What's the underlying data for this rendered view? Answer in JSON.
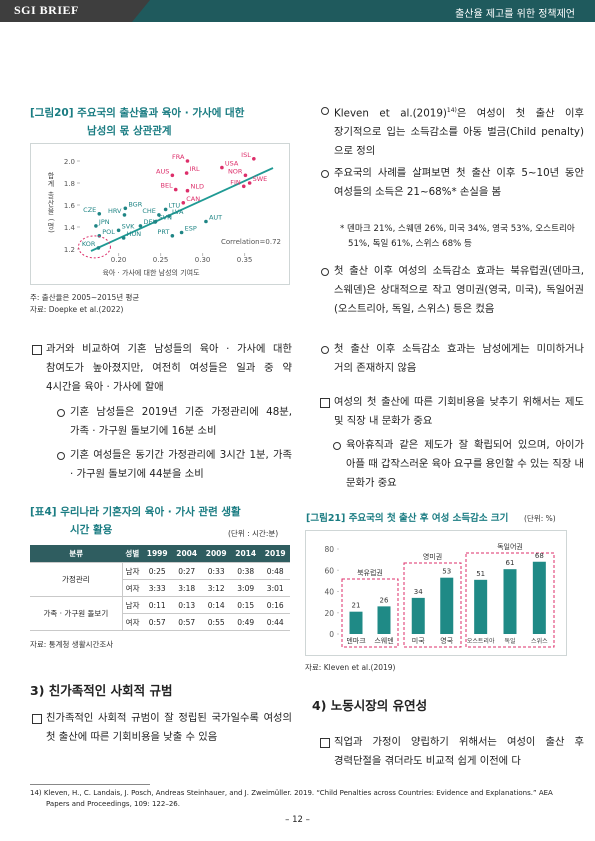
{
  "header": {
    "brand": "SGI BRIEF",
    "title": "출산율 제고를 위한 정책제언"
  },
  "left": {
    "figure20": {
      "title_line1": "[그림20] 주요국의 출산율과 육아 · 가사에 대한",
      "title_line2": "남성의 몫 상관관계",
      "chart": {
        "type": "scatter",
        "y_label": "합계 출산율 (명)",
        "x_label": "육아 · 가사에 대한 남성의 기여도",
        "annotation": "Correlation=0.72",
        "xlim": [
          0.16,
          0.385
        ],
        "ylim": [
          1.15,
          2.08
        ],
        "xticks": [
          {
            "value": 0.2,
            "label": "0.20"
          },
          0.25,
          {
            "value": 0.3,
            "label": "0.30"
          },
          0.35
        ],
        "yticks": [
          {
            "value": 2,
            "label": "2.0"
          },
          1.8,
          1.6,
          1.4,
          1.2
        ],
        "points": [
          {
            "label": "FRA",
            "x": 0.282,
            "y": 2.0,
            "color": "#dd2e6a"
          },
          {
            "label": "USA",
            "x": 0.323,
            "y": 1.94,
            "color": "#dd2e6a"
          },
          {
            "label": "ISL",
            "x": 0.361,
            "y": 2.02,
            "color": "#dd2e6a"
          },
          {
            "label": "AUS",
            "x": 0.264,
            "y": 1.87,
            "color": "#dd2e6a"
          },
          {
            "label": "IRL",
            "x": 0.281,
            "y": 1.89,
            "color": "#dd2e6a"
          },
          {
            "label": "NOR",
            "x": 0.351,
            "y": 1.87,
            "color": "#dd2e6a"
          },
          {
            "label": "SWE",
            "x": 0.356,
            "y": 1.8,
            "color": "#dd2e6a"
          },
          {
            "label": "FIN",
            "x": 0.349,
            "y": 1.77,
            "color": "#dd2e6a"
          },
          {
            "label": "BEL",
            "x": 0.268,
            "y": 1.74,
            "color": "#dd2e6a"
          },
          {
            "label": "NLD",
            "x": 0.282,
            "y": 1.73,
            "color": "#dd2e6a"
          },
          {
            "label": "CAN",
            "x": 0.277,
            "y": 1.62,
            "color": "#dd2e6a"
          },
          {
            "label": "BGR",
            "x": 0.208,
            "y": 1.57,
            "color": "#1f8585"
          },
          {
            "label": "CZE",
            "x": 0.177,
            "y": 1.52,
            "color": "#1f8585"
          },
          {
            "label": "HRV",
            "x": 0.207,
            "y": 1.51,
            "color": "#1f8585"
          },
          {
            "label": "LTU",
            "x": 0.256,
            "y": 1.56,
            "color": "#1f8585"
          },
          {
            "label": "CHE",
            "x": 0.248,
            "y": 1.51,
            "color": "#1f8585"
          },
          {
            "label": "LVA",
            "x": 0.26,
            "y": 1.5,
            "color": "#1f8585"
          },
          {
            "label": "SVN",
            "x": 0.244,
            "y": 1.45,
            "color": "#1f8585"
          },
          {
            "label": "DEU",
            "x": 0.226,
            "y": 1.41,
            "color": "#1f8585"
          },
          {
            "label": "AUT",
            "x": 0.304,
            "y": 1.45,
            "color": "#1f8585"
          },
          {
            "label": "JPN",
            "x": 0.173,
            "y": 1.41,
            "color": "#1f8585"
          },
          {
            "label": "SVK",
            "x": 0.2,
            "y": 1.37,
            "color": "#1f8585"
          },
          {
            "label": "POL",
            "x": 0.177,
            "y": 1.32,
            "color": "#1f8585"
          },
          {
            "label": "HUN",
            "x": 0.206,
            "y": 1.3,
            "color": "#1f8585"
          },
          {
            "label": "PRT",
            "x": 0.264,
            "y": 1.32,
            "color": "#1f8585"
          },
          {
            "label": "ESP",
            "x": 0.275,
            "y": 1.35,
            "color": "#1f8585"
          },
          {
            "label": "KOR",
            "x": 0.176,
            "y": 1.21,
            "color": "#1f8585",
            "highlighted": true
          }
        ]
      },
      "note": "주: 출산율은 2005~2015년 평균",
      "source": "자료: Doepke et al.(2022)"
    },
    "para1": {
      "text": "과거와 비교하여 기혼 남성들의 육아 · 가사에 대한 참여도가 높아졌지만, 여전히 여성들은 일과 중 약 4시간을 육아 · 가사에 할애",
      "items": [
        "기혼 남성들은 2019년 기준 가정관리에 48분, 가족 · 가구원 돌보기에 16분 소비",
        "기혼 여성들은 동기간 가정관리에 3시간 1분, 가족 · 가구원 돌보기에 44분을 소비"
      ]
    },
    "table4": {
      "title_line1": "[표4] 우리나라 기혼자의 육아 · 가사 관련 생활",
      "title_line2": "시간 활용",
      "unit": "(단위 : 시간:분)",
      "header": [
        "분류",
        "성별",
        "1999",
        "2004",
        "2009",
        "2014",
        "2019"
      ],
      "rows": [
        {
          "category": "가정관리",
          "data": [
            [
              "남자",
              "0:25",
              "0:27",
              "0:33",
              "0:38",
              "0:48"
            ],
            [
              "여자",
              "3:33",
              "3:18",
              "3:12",
              "3:09",
              "3:01"
            ]
          ]
        },
        {
          "category": "가족 · 가구원 돌보기",
          "data": [
            [
              "남자",
              "0:11",
              "0:13",
              "0:14",
              "0:15",
              "0:16"
            ],
            [
              "여자",
              "0:57",
              "0:57",
              "0:55",
              "0:49",
              "0:44"
            ]
          ]
        }
      ],
      "source": "자료: 통계청 생활시간조사"
    },
    "section3": {
      "heading": "3) 친가족적인 사회적 규범",
      "para": "친가족적인 사회적 규범이 잘 정립된 국가일수록 여성의 첫 출산에 따른 기회비용을 낮출 수 있음"
    }
  },
  "right": {
    "item1": {
      "before": "Kleven et al.(2019)",
      "sup": "14)",
      "after": "은 여성이 첫 출산 이후 장기적으로 입는 소득감소를 아동 벌금(Child penalty)으로 정의"
    },
    "item2": "주요국의 사례를 살펴보면 첫 출산 이후 5~10년 동안 여성들의 소득은 21~68%* 손실을 봄",
    "item2_note": "* 덴마크 21%, 스웨덴 26%, 미국 34%, 영국 53%, 오스트리아 51%, 독일 61%, 스위스 68% 등",
    "item3": "첫 출산 이후 여성의 소득감소 효과는 북유럽권(덴마크, 스웨덴)은 상대적으로 작고 영미권(영국, 미국), 독일어권(오스트리아, 독일, 스위스) 등은 컸음",
    "item4": "첫 출산 이후 소득감소 효과는 남성에게는 미미하거나 거의 존재하지 않음",
    "para2": {
      "text": "여성의 첫 출산에 따른 기회비용을 낮추기 위해서는 제도 및 직장 내 문화가 중요",
      "items": [
        "육아휴직과 같은 제도가 잘 확립되어 있으며, 아이가 아플 때 갑작스러운 육아 요구를 용인할 수 있는 직장 내 문화가 중요"
      ]
    },
    "figure21": {
      "title": "[그림21] 주요국의 첫 출산 후 여성 소득감소 크기",
      "unit": "(단위: %)",
      "chart": {
        "type": "bar",
        "color": "#1f8a86",
        "ylim": [
          0,
          80
        ],
        "yticks": [
          0,
          20,
          40,
          60,
          80
        ],
        "groups": [
          {
            "label": "북유럽권",
            "categories": [
              "덴마크",
              "스웨덴"
            ],
            "values": [
              21,
              26
            ]
          },
          {
            "label": "영미권",
            "categories": [
              "미국",
              "영국"
            ],
            "values": [
              34,
              53
            ]
          },
          {
            "label": "독일어권",
            "categories": [
              "오스트리아",
              "독일",
              "스위스"
            ],
            "values": [
              51,
              61,
              68
            ]
          }
        ]
      },
      "source": "자료: Kleven et al.(2019)"
    },
    "section4": {
      "heading": "4) 노동시장의 유연성",
      "para": "직업과 가정이 양립하기 위해서는 여성이 출산 후 경력단절을 겪더라도 비교적 쉽게 이전에 다"
    }
  },
  "footer": {
    "footnote": "14) Kleven, H., C. Landais, J. Posch, Andreas Steinhauer, and J. Zweimüller. 2019. “Child Penalties across Countries: Evidence and Explanations.” AEA Papers and Proceedings, 109: 122–26.",
    "page": "– 12 –"
  }
}
